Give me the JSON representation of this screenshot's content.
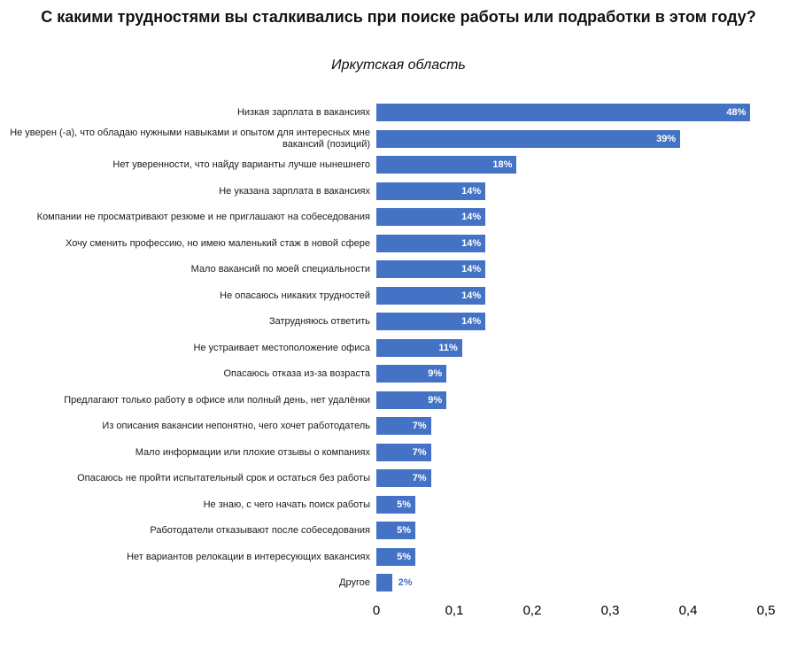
{
  "title": "С какими трудностями вы сталкивались при поиске работы или подработки в этом году?",
  "subtitle": "Иркутская область",
  "chart_data": {
    "type": "bar",
    "orientation": "horizontal",
    "title": "С какими трудностями вы сталкивались при поиске работы или подработки в этом году?",
    "subtitle": "Иркутская область",
    "categories": [
      "Низкая зарплата в вакансиях",
      "Не уверен (-а), что обладаю нужными навыками и опытом для интересных мне вакансий (позиций)",
      "Нет уверенности, что найду варианты лучше нынешнего",
      "Не указана зарплата в вакансиях",
      "Компании не просматривают резюме и не приглашают на собеседования",
      "Хочу сменить профессию, но имею маленький стаж в новой сфере",
      "Мало вакансий по моей специальности",
      "Не опасаюсь никаких трудностей",
      "Затрудняюсь ответить",
      "Не устраивает местоположение офиса",
      "Опасаюсь отказа из-за возраста",
      "Предлагают только работу в офисе или полный день, нет удалёнки",
      "Из описания вакансии непонятно, чего хочет работодатель",
      "Мало информации или плохие отзывы о компаниях",
      "Опасаюсь не пройти испытательный срок и остаться без работы",
      "Не знаю, с чего начать поиск работы",
      "Работодатели отказывают после собеседования",
      "Нет вариантов релокации в интересующих вакансиях",
      "Другое"
    ],
    "values": [
      0.48,
      0.39,
      0.18,
      0.14,
      0.14,
      0.14,
      0.14,
      0.14,
      0.14,
      0.11,
      0.09,
      0.09,
      0.07,
      0.07,
      0.07,
      0.05,
      0.05,
      0.05,
      0.02
    ],
    "value_labels": [
      "48%",
      "39%",
      "18%",
      "14%",
      "14%",
      "14%",
      "14%",
      "14%",
      "14%",
      "11%",
      "9%",
      "9%",
      "7%",
      "7%",
      "7%",
      "5%",
      "5%",
      "5%",
      "2%"
    ],
    "xlim": [
      0,
      0.5
    ],
    "x_ticks": [
      "0",
      "0,1",
      "0,2",
      "0,3",
      "0,4",
      "0,5"
    ],
    "bar_color": "#4472C4",
    "label_inside_color": "#FFFFFF",
    "label_outside_color": "#4472C4",
    "grid": "off",
    "legend": "none"
  }
}
